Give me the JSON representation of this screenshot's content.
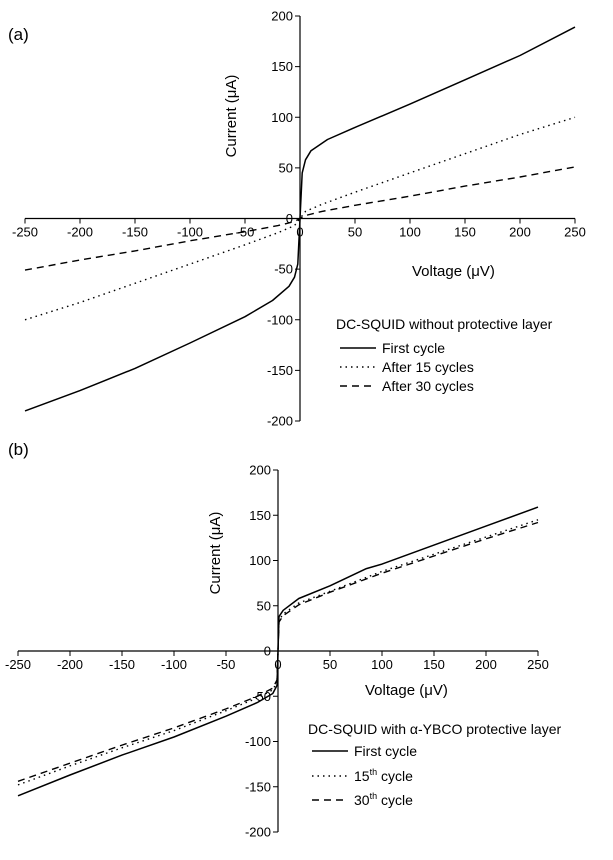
{
  "chart_data": [
    {
      "panel_label": "(a)",
      "type": "line",
      "xlabel": "Voltage (μV)",
      "ylabel": "Current (μA)",
      "xlim": [
        -250,
        250
      ],
      "ylim": [
        -200,
        200
      ],
      "xticks": [
        -250,
        -200,
        -150,
        -100,
        -50,
        0,
        50,
        100,
        150,
        200,
        250
      ],
      "yticks": [
        -200,
        -150,
        -100,
        -50,
        0,
        50,
        100,
        150,
        200
      ],
      "grid": false,
      "legend_title": "DC-SQUID without protective layer",
      "legend_position": "lower-right",
      "series": [
        {
          "name": "First cycle",
          "line_style": "solid",
          "color": "#000000",
          "points": [
            [
              -250,
              -190
            ],
            [
              -200,
              -170
            ],
            [
              -150,
              -148
            ],
            [
              -100,
              -123
            ],
            [
              -50,
              -97
            ],
            [
              -25,
              -81
            ],
            [
              -10,
              -67
            ],
            [
              -5,
              -58
            ],
            [
              -2,
              -45
            ],
            [
              0,
              0
            ],
            [
              2,
              45
            ],
            [
              5,
              58
            ],
            [
              10,
              67
            ],
            [
              25,
              78
            ],
            [
              50,
              90
            ],
            [
              100,
              113
            ],
            [
              150,
              137
            ],
            [
              200,
              161
            ],
            [
              250,
              189
            ]
          ]
        },
        {
          "name": "After 15 cycles",
          "line_style": "dotted",
          "color": "#000000",
          "points": [
            [
              -250,
              -100
            ],
            [
              -200,
              -83
            ],
            [
              -150,
              -64
            ],
            [
              -100,
              -45
            ],
            [
              -50,
              -26
            ],
            [
              -20,
              -14
            ],
            [
              -5,
              -7
            ],
            [
              0,
              0
            ],
            [
              5,
              7
            ],
            [
              20,
              14
            ],
            [
              50,
              26
            ],
            [
              100,
              45
            ],
            [
              150,
              64
            ],
            [
              200,
              83
            ],
            [
              250,
              100
            ]
          ]
        },
        {
          "name": "After 30 cycles",
          "line_style": "dashed",
          "color": "#000000",
          "points": [
            [
              -250,
              -51
            ],
            [
              -200,
              -41
            ],
            [
              -150,
              -32
            ],
            [
              -100,
              -22
            ],
            [
              -50,
              -13
            ],
            [
              -20,
              -7
            ],
            [
              -5,
              -3
            ],
            [
              0,
              0
            ],
            [
              5,
              3
            ],
            [
              20,
              7
            ],
            [
              50,
              13
            ],
            [
              100,
              22
            ],
            [
              150,
              32
            ],
            [
              200,
              41
            ],
            [
              250,
              51
            ]
          ]
        }
      ]
    },
    {
      "panel_label": "(b)",
      "type": "line",
      "xlabel": "Voltage (μV)",
      "ylabel": "Current (μA)",
      "xlim": [
        -250,
        250
      ],
      "ylim": [
        -200,
        200
      ],
      "xticks": [
        -250,
        -200,
        -150,
        -100,
        -50,
        0,
        50,
        100,
        150,
        200,
        250
      ],
      "yticks": [
        -200,
        -150,
        -100,
        -50,
        0,
        50,
        100,
        150,
        200
      ],
      "grid": false,
      "legend_title": "DC-SQUID with α-YBCO protective layer",
      "legend_position": "lower-right",
      "series": [
        {
          "name": "First cycle",
          "name_main": "First cycle",
          "name_sup": "",
          "line_style": "solid",
          "color": "#000000",
          "points": [
            [
              -250,
              -160
            ],
            [
              -200,
              -137
            ],
            [
              -150,
              -115
            ],
            [
              -100,
              -95
            ],
            [
              -50,
              -72
            ],
            [
              -20,
              -57
            ],
            [
              -5,
              -47
            ],
            [
              -1,
              -38
            ],
            [
              0,
              0
            ],
            [
              1,
              38
            ],
            [
              5,
              45
            ],
            [
              20,
              58
            ],
            [
              50,
              72
            ],
            [
              85,
              91
            ],
            [
              100,
              96
            ],
            [
              150,
              117
            ],
            [
              200,
              138
            ],
            [
              250,
              159
            ]
          ]
        },
        {
          "name": "15th cycle",
          "name_main": "15",
          "name_sup": "th",
          "name_tail": " cycle",
          "line_style": "dotted",
          "color": "#000000",
          "points": [
            [
              -250,
              -148
            ],
            [
              -200,
              -127
            ],
            [
              -150,
              -107
            ],
            [
              -100,
              -88
            ],
            [
              -50,
              -66
            ],
            [
              -20,
              -52
            ],
            [
              -5,
              -43
            ],
            [
              -1,
              -34
            ],
            [
              0,
              0
            ],
            [
              1,
              34
            ],
            [
              5,
              41
            ],
            [
              20,
              53
            ],
            [
              50,
              66
            ],
            [
              100,
              88
            ],
            [
              150,
              107
            ],
            [
              200,
              126
            ],
            [
              250,
              145
            ]
          ]
        },
        {
          "name": "30th cycle",
          "name_main": "30",
          "name_sup": "th",
          "name_tail": " cycle",
          "line_style": "dashed",
          "color": "#000000",
          "points": [
            [
              -250,
              -144
            ],
            [
              -200,
              -124
            ],
            [
              -150,
              -104
            ],
            [
              -100,
              -85
            ],
            [
              -50,
              -64
            ],
            [
              -20,
              -50
            ],
            [
              -5,
              -41
            ],
            [
              -1,
              -32
            ],
            [
              0,
              0
            ],
            [
              1,
              32
            ],
            [
              5,
              39
            ],
            [
              20,
              51
            ],
            [
              50,
              65
            ],
            [
              100,
              86
            ],
            [
              150,
              105
            ],
            [
              200,
              124
            ],
            [
              250,
              142
            ]
          ]
        }
      ]
    }
  ]
}
